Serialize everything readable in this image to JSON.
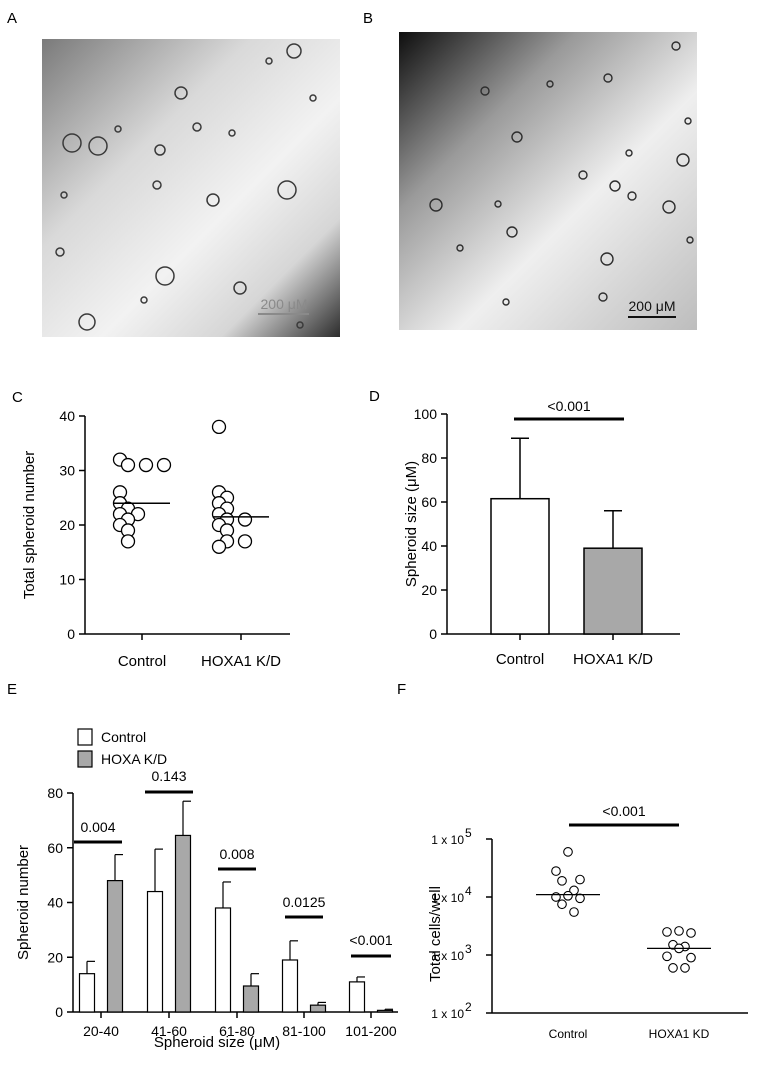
{
  "panel_labels": [
    "A",
    "B",
    "C",
    "D",
    "E",
    "F"
  ],
  "micrographs": [
    {
      "scale_bar_label": "200 μM"
    },
    {
      "scale_bar_label": "200 μM"
    }
  ],
  "chart_data": [
    {
      "panel": "C",
      "type": "scatter",
      "ylabel": "Total spheroid number",
      "xlabel": "",
      "ylim": [
        0,
        40
      ],
      "yticks": [
        0,
        10,
        20,
        30,
        40
      ],
      "categories": [
        "Control",
        "HOXA1 K/D"
      ],
      "groups": [
        {
          "name": "Control",
          "mean": 24,
          "points": [
            32,
            31,
            31,
            31,
            26,
            24,
            23,
            22,
            22,
            21,
            20,
            19,
            17
          ]
        },
        {
          "name": "HOXA1 K/D",
          "mean": 21.5,
          "points": [
            38,
            26,
            25,
            24,
            23,
            22,
            21,
            21,
            20,
            19,
            17,
            17,
            16
          ]
        }
      ]
    },
    {
      "panel": "D",
      "type": "bar",
      "ylabel": "Spheroid size (μM)",
      "xlabel": "",
      "ylim": [
        0,
        100
      ],
      "yticks": [
        0,
        20,
        40,
        60,
        80,
        100
      ],
      "categories": [
        "Control",
        "HOXA1 K/D"
      ],
      "values": [
        61.5,
        39
      ],
      "errors": [
        27.5,
        17
      ],
      "colors": [
        "#ffffff",
        "#a8a8a8"
      ],
      "annotation": "<0.001"
    },
    {
      "panel": "E",
      "type": "bar",
      "ylabel": "Spheroid number",
      "xlabel": "Spheroid size (μM)",
      "ylim": [
        0,
        80
      ],
      "yticks": [
        0,
        20,
        40,
        60,
        80
      ],
      "categories": [
        "20-40",
        "41-60",
        "61-80",
        "81-100",
        "101-200"
      ],
      "series": [
        {
          "name": "Control",
          "color": "#ffffff",
          "values": [
            14,
            44,
            38,
            19,
            11
          ],
          "errors": [
            4.5,
            15.5,
            9.5,
            7,
            1.8
          ]
        },
        {
          "name": "HOXA K/D",
          "color": "#a8a8a8",
          "values": [
            48,
            64.5,
            9.5,
            2.5,
            0.6
          ],
          "errors": [
            9.5,
            12.5,
            4.5,
            1,
            0.4
          ]
        }
      ],
      "legend_position": "top-left",
      "annotations": [
        "0.004",
        "0.143",
        "0.008",
        "0.0125",
        "<0.001"
      ]
    },
    {
      "panel": "F",
      "type": "scatter",
      "yscale": "log",
      "ylabel": "Total cells/well",
      "xlabel": "",
      "ylim": [
        100,
        100000
      ],
      "yticks": [
        100,
        1000,
        10000,
        100000
      ],
      "ytick_labels": [
        {
          "base": "1 x 10",
          "exp": "2"
        },
        {
          "base": "1 x 10",
          "exp": "3"
        },
        {
          "base": "1 x 10",
          "exp": "4"
        },
        {
          "base": "1 x 10",
          "exp": "5"
        }
      ],
      "categories": [
        "Control",
        "HOXA1 KD"
      ],
      "groups": [
        {
          "name": "Control",
          "median": 11000,
          "points": [
            60000,
            28000,
            20000,
            19000,
            13000,
            10500,
            10000,
            9500,
            7500,
            5500
          ]
        },
        {
          "name": "HOXA1 KD",
          "median": 1300,
          "points": [
            2600,
            2500,
            2400,
            1500,
            1400,
            1300,
            950,
            900,
            600,
            600
          ]
        }
      ],
      "annotation": "<0.001"
    }
  ]
}
